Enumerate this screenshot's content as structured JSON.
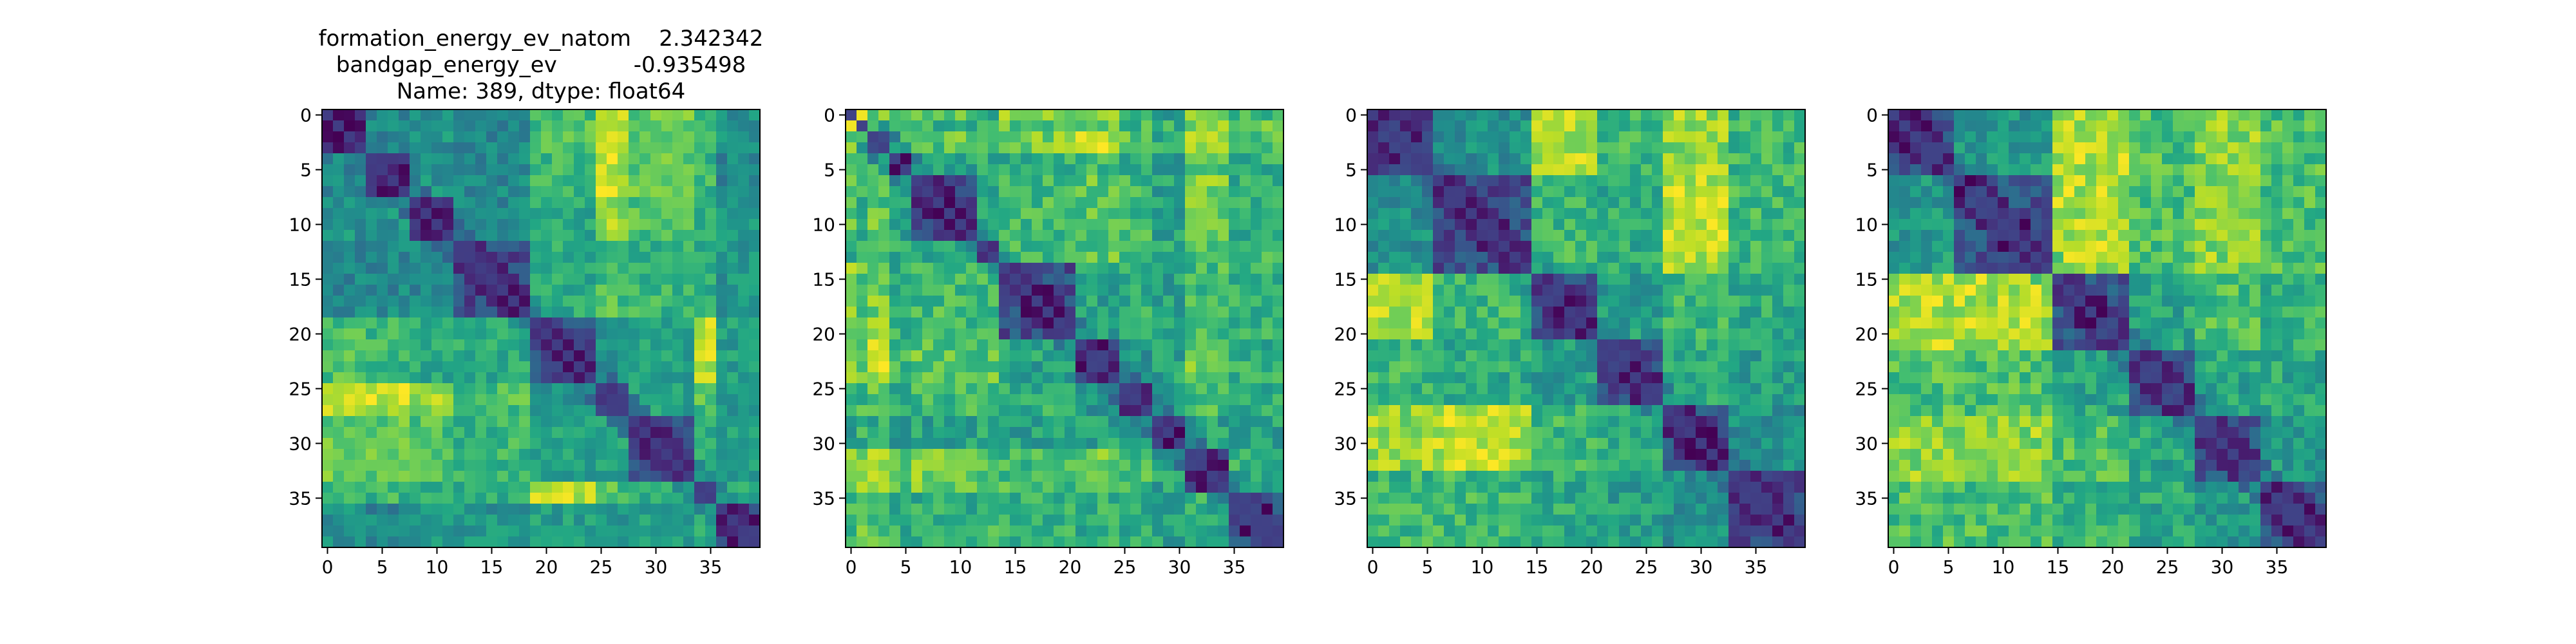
{
  "figure": {
    "title_lines": [
      "formation_energy_ev_natom    2.342342",
      "bandgap_energy_ev           -0.935498",
      "Name: 389, dtype: float64"
    ]
  },
  "chart_data": [
    {
      "type": "heatmap",
      "colormap": "viridis",
      "n": 40,
      "xlim": [
        -0.5,
        39.5
      ],
      "ylim": [
        39.5,
        -0.5
      ],
      "xticks": [
        0,
        5,
        10,
        15,
        20,
        25,
        30,
        35
      ],
      "yticks": [
        0,
        5,
        10,
        15,
        20,
        25,
        30,
        35
      ],
      "diagonal": 0,
      "block_edges": [
        0,
        4,
        8,
        12,
        19,
        25,
        28,
        34,
        36,
        40
      ],
      "block_levels": [
        [
          0.0,
          0.3,
          0.35,
          0.3,
          0.55,
          0.8,
          0.6,
          0.55,
          0.35
        ],
        [
          0.3,
          0.05,
          0.35,
          0.3,
          0.5,
          0.75,
          0.6,
          0.5,
          0.3
        ],
        [
          0.35,
          0.35,
          0.05,
          0.3,
          0.45,
          0.7,
          0.55,
          0.5,
          0.35
        ],
        [
          0.3,
          0.3,
          0.3,
          0.05,
          0.45,
          0.55,
          0.5,
          0.45,
          0.35
        ],
        [
          0.55,
          0.5,
          0.45,
          0.45,
          0.05,
          0.35,
          0.4,
          0.75,
          0.4
        ],
        [
          0.8,
          0.75,
          0.7,
          0.55,
          0.35,
          0.05,
          0.4,
          0.55,
          0.35
        ],
        [
          0.6,
          0.6,
          0.55,
          0.5,
          0.4,
          0.4,
          0.05,
          0.45,
          0.4
        ],
        [
          0.55,
          0.5,
          0.5,
          0.45,
          0.75,
          0.55,
          0.45,
          0.05,
          0.45
        ],
        [
          0.35,
          0.3,
          0.35,
          0.35,
          0.4,
          0.35,
          0.4,
          0.45,
          0.05
        ]
      ],
      "noise_seed": 11
    },
    {
      "type": "heatmap",
      "colormap": "viridis",
      "n": 40,
      "xlim": [
        -0.5,
        39.5
      ],
      "ylim": [
        39.5,
        -0.5
      ],
      "xticks": [
        0,
        5,
        10,
        15,
        20,
        25,
        30,
        35
      ],
      "yticks": [
        0,
        5,
        10,
        15,
        20,
        25,
        30,
        35
      ],
      "diagonal": 0,
      "block_edges": [
        0,
        1,
        2,
        4,
        6,
        12,
        14,
        21,
        25,
        28,
        31,
        35,
        40
      ],
      "block_levels": [
        [
          0.0,
          0.9,
          0.6,
          0.45,
          0.5,
          0.4,
          0.6,
          0.55,
          0.4,
          0.35,
          0.55,
          0.45
        ],
        [
          0.9,
          0.0,
          0.5,
          0.45,
          0.4,
          0.45,
          0.5,
          0.55,
          0.45,
          0.4,
          0.6,
          0.5
        ],
        [
          0.6,
          0.5,
          0.05,
          0.4,
          0.5,
          0.45,
          0.55,
          0.65,
          0.5,
          0.4,
          0.65,
          0.5
        ],
        [
          0.45,
          0.45,
          0.4,
          0.05,
          0.35,
          0.4,
          0.4,
          0.45,
          0.4,
          0.35,
          0.5,
          0.4
        ],
        [
          0.5,
          0.4,
          0.5,
          0.35,
          0.05,
          0.4,
          0.45,
          0.5,
          0.45,
          0.35,
          0.55,
          0.4
        ],
        [
          0.4,
          0.45,
          0.45,
          0.4,
          0.4,
          0.05,
          0.45,
          0.5,
          0.45,
          0.4,
          0.5,
          0.45
        ],
        [
          0.6,
          0.5,
          0.55,
          0.4,
          0.45,
          0.45,
          0.05,
          0.35,
          0.4,
          0.35,
          0.45,
          0.4
        ],
        [
          0.55,
          0.55,
          0.65,
          0.45,
          0.5,
          0.5,
          0.35,
          0.05,
          0.3,
          0.35,
          0.55,
          0.4
        ],
        [
          0.4,
          0.45,
          0.5,
          0.4,
          0.45,
          0.45,
          0.4,
          0.3,
          0.05,
          0.3,
          0.45,
          0.4
        ],
        [
          0.35,
          0.4,
          0.4,
          0.35,
          0.35,
          0.4,
          0.35,
          0.35,
          0.3,
          0.05,
          0.35,
          0.35
        ],
        [
          0.55,
          0.6,
          0.65,
          0.5,
          0.55,
          0.5,
          0.45,
          0.55,
          0.45,
          0.35,
          0.05,
          0.4
        ],
        [
          0.45,
          0.5,
          0.5,
          0.4,
          0.4,
          0.45,
          0.4,
          0.4,
          0.4,
          0.35,
          0.4,
          0.05
        ]
      ],
      "noise_seed": 23
    },
    {
      "type": "heatmap",
      "colormap": "viridis",
      "n": 40,
      "xlim": [
        -0.5,
        39.5
      ],
      "ylim": [
        39.5,
        -0.5
      ],
      "xticks": [
        0,
        5,
        10,
        15,
        20,
        25,
        30,
        35
      ],
      "yticks": [
        0,
        5,
        10,
        15,
        20,
        25,
        30,
        35
      ],
      "diagonal": 0,
      "block_edges": [
        0,
        6,
        15,
        21,
        27,
        33,
        40
      ],
      "block_levels": [
        [
          0.05,
          0.3,
          0.65,
          0.45,
          0.6,
          0.45
        ],
        [
          0.3,
          0.05,
          0.45,
          0.4,
          0.65,
          0.45
        ],
        [
          0.65,
          0.45,
          0.05,
          0.35,
          0.45,
          0.4
        ],
        [
          0.45,
          0.4,
          0.35,
          0.05,
          0.4,
          0.35
        ],
        [
          0.6,
          0.65,
          0.45,
          0.4,
          0.05,
          0.3
        ],
        [
          0.45,
          0.45,
          0.4,
          0.35,
          0.3,
          0.05
        ]
      ],
      "noise_seed": 37
    },
    {
      "type": "heatmap",
      "colormap": "viridis",
      "n": 40,
      "xlim": [
        -0.5,
        39.5
      ],
      "ylim": [
        39.5,
        -0.5
      ],
      "xticks": [
        0,
        5,
        10,
        15,
        20,
        25,
        30,
        35
      ],
      "yticks": [
        0,
        5,
        10,
        15,
        20,
        25,
        30,
        35
      ],
      "diagonal": 0,
      "block_edges": [
        0,
        6,
        15,
        22,
        28,
        34,
        40
      ],
      "block_levels": [
        [
          0.05,
          0.3,
          0.6,
          0.45,
          0.55,
          0.45
        ],
        [
          0.3,
          0.05,
          0.6,
          0.45,
          0.55,
          0.45
        ],
        [
          0.6,
          0.6,
          0.05,
          0.35,
          0.45,
          0.4
        ],
        [
          0.45,
          0.45,
          0.35,
          0.05,
          0.35,
          0.35
        ],
        [
          0.55,
          0.55,
          0.45,
          0.35,
          0.05,
          0.3
        ],
        [
          0.45,
          0.45,
          0.4,
          0.35,
          0.3,
          0.05
        ]
      ],
      "noise_seed": 53
    }
  ]
}
